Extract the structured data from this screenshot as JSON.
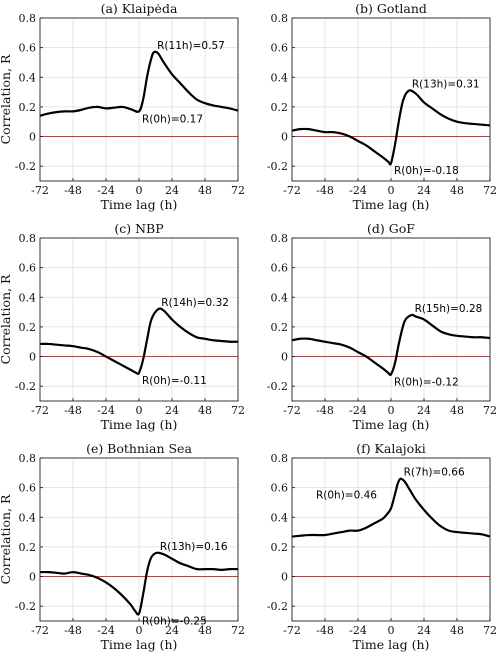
{
  "chart_data": [
    {
      "type": "line",
      "title": "(a) Klaipėda",
      "xlabel": "Time lag (h)",
      "ylabel": "Correlation, R",
      "xlim": [
        -72,
        72
      ],
      "ylim": [
        -0.3,
        0.8
      ],
      "xticks": [
        -72,
        -48,
        -24,
        0,
        24,
        48,
        72
      ],
      "yticks": [
        -0.2,
        0,
        0.2,
        0.4,
        0.6,
        0.8
      ],
      "xticklabels": [
        "-72",
        "-48",
        "-24",
        "0",
        "24",
        "48",
        "72"
      ],
      "yticklabels": [
        "-0.2",
        "0",
        "0.2",
        "0.4",
        "0.6",
        "0.8"
      ],
      "grid": true,
      "x": [
        -72,
        -66,
        -60,
        -54,
        -48,
        -42,
        -36,
        -30,
        -24,
        -18,
        -12,
        -6,
        0,
        3,
        6,
        9,
        11,
        14,
        18,
        24,
        30,
        36,
        42,
        48,
        54,
        60,
        66,
        72
      ],
      "values": [
        0.14,
        0.155,
        0.165,
        0.17,
        0.17,
        0.18,
        0.195,
        0.2,
        0.19,
        0.195,
        0.2,
        0.185,
        0.17,
        0.25,
        0.41,
        0.53,
        0.57,
        0.56,
        0.5,
        0.42,
        0.36,
        0.3,
        0.25,
        0.225,
        0.21,
        0.2,
        0.19,
        0.175
      ],
      "annotations": [
        {
          "text": "R(11h)=0.57",
          "x": 11,
          "y": 0.57,
          "anchor": "upper-right"
        },
        {
          "text": "R(0h)=0.17",
          "x": 0,
          "y": 0.17,
          "anchor": "lower-right"
        }
      ]
    },
    {
      "type": "line",
      "title": "(b) Gotland",
      "xlabel": "Time lag (h)",
      "ylabel": "",
      "xlim": [
        -72,
        72
      ],
      "ylim": [
        -0.3,
        0.8
      ],
      "xticks": [
        -72,
        -48,
        -24,
        0,
        24,
        48,
        72
      ],
      "yticks": [
        -0.2,
        0,
        0.2,
        0.4,
        0.6,
        0.8
      ],
      "xticklabels": [
        "-72",
        "-48",
        "-24",
        "0",
        "24",
        "48",
        "72"
      ],
      "yticklabels": [
        "-0.2",
        "0",
        "0.2",
        "0.4",
        "0.6",
        "0.8"
      ],
      "grid": true,
      "x": [
        -72,
        -66,
        -60,
        -54,
        -48,
        -42,
        -36,
        -30,
        -24,
        -18,
        -12,
        -6,
        -2,
        0,
        3,
        6,
        9,
        13,
        18,
        24,
        30,
        36,
        42,
        48,
        54,
        60,
        66,
        72
      ],
      "values": [
        0.04,
        0.05,
        0.05,
        0.04,
        0.03,
        0.03,
        0.02,
        0.0,
        -0.03,
        -0.06,
        -0.1,
        -0.14,
        -0.17,
        -0.18,
        -0.05,
        0.12,
        0.25,
        0.31,
        0.29,
        0.23,
        0.19,
        0.15,
        0.12,
        0.1,
        0.09,
        0.085,
        0.08,
        0.075
      ],
      "annotations": [
        {
          "text": "R(13h)=0.31",
          "x": 13,
          "y": 0.31,
          "anchor": "upper-right"
        },
        {
          "text": "R(0h)=-0.18",
          "x": 0,
          "y": -0.18,
          "anchor": "lower-right"
        }
      ]
    },
    {
      "type": "line",
      "title": "(c) NBP",
      "xlabel": "Time lag (h)",
      "ylabel": "Correlation, R",
      "xlim": [
        -72,
        72
      ],
      "ylim": [
        -0.3,
        0.8
      ],
      "xticks": [
        -72,
        -48,
        -24,
        0,
        24,
        48,
        72
      ],
      "yticks": [
        -0.2,
        0,
        0.2,
        0.4,
        0.6,
        0.8
      ],
      "xticklabels": [
        "-72",
        "-48",
        "-24",
        "0",
        "24",
        "48",
        "72"
      ],
      "yticklabels": [
        "-0.2",
        "0",
        "0.2",
        "0.4",
        "0.6",
        "0.8"
      ],
      "grid": true,
      "x": [
        -72,
        -66,
        -60,
        -54,
        -48,
        -42,
        -36,
        -30,
        -24,
        -18,
        -12,
        -6,
        -2,
        0,
        3,
        6,
        9,
        14,
        18,
        24,
        30,
        36,
        42,
        48,
        54,
        60,
        66,
        72
      ],
      "values": [
        0.085,
        0.085,
        0.08,
        0.075,
        0.07,
        0.06,
        0.05,
        0.03,
        0.0,
        -0.03,
        -0.06,
        -0.09,
        -0.11,
        -0.11,
        -0.02,
        0.12,
        0.25,
        0.32,
        0.31,
        0.25,
        0.2,
        0.16,
        0.13,
        0.12,
        0.11,
        0.105,
        0.1,
        0.1
      ],
      "annotations": [
        {
          "text": "R(14h)=0.32",
          "x": 14,
          "y": 0.32,
          "anchor": "upper-right"
        },
        {
          "text": "R(0h)=-0.11",
          "x": 0,
          "y": -0.11,
          "anchor": "lower-right"
        }
      ]
    },
    {
      "type": "line",
      "title": "(d) GoF",
      "xlabel": "Time lag (h)",
      "ylabel": "",
      "xlim": [
        -72,
        72
      ],
      "ylim": [
        -0.3,
        0.8
      ],
      "xticks": [
        -72,
        -48,
        -24,
        0,
        24,
        48,
        72
      ],
      "yticks": [
        -0.2,
        0,
        0.2,
        0.4,
        0.6,
        0.8
      ],
      "xticklabels": [
        "-72",
        "-48",
        "-24",
        "0",
        "24",
        "48",
        "72"
      ],
      "yticklabels": [
        "-0.2",
        "0",
        "0.2",
        "0.4",
        "0.6",
        "0.8"
      ],
      "grid": true,
      "x": [
        -72,
        -66,
        -60,
        -54,
        -48,
        -42,
        -36,
        -30,
        -24,
        -18,
        -12,
        -6,
        -2,
        0,
        3,
        6,
        10,
        15,
        18,
        24,
        30,
        36,
        42,
        48,
        54,
        60,
        66,
        72
      ],
      "values": [
        0.11,
        0.12,
        0.12,
        0.11,
        0.1,
        0.09,
        0.08,
        0.06,
        0.03,
        0.0,
        -0.04,
        -0.08,
        -0.11,
        -0.12,
        -0.04,
        0.1,
        0.24,
        0.28,
        0.27,
        0.25,
        0.21,
        0.17,
        0.15,
        0.14,
        0.135,
        0.13,
        0.13,
        0.125
      ],
      "annotations": [
        {
          "text": "R(15h)=0.28",
          "x": 15,
          "y": 0.28,
          "anchor": "upper-right"
        },
        {
          "text": "R(0h)=-0.12",
          "x": 0,
          "y": -0.12,
          "anchor": "lower-right"
        }
      ]
    },
    {
      "type": "line",
      "title": "(e) Bothnian Sea",
      "xlabel": "Time lag (h)",
      "ylabel": "Correlation, R",
      "xlim": [
        -72,
        72
      ],
      "ylim": [
        -0.3,
        0.8
      ],
      "xticks": [
        -72,
        -48,
        -24,
        0,
        24,
        48,
        72
      ],
      "yticks": [
        -0.2,
        0,
        0.2,
        0.4,
        0.6,
        0.8
      ],
      "xticklabels": [
        "-72",
        "-48",
        "-24",
        "0",
        "24",
        "48",
        "72"
      ],
      "yticklabels": [
        "-0.2",
        "0",
        "0.2",
        "0.4",
        "0.6",
        "0.8"
      ],
      "grid": true,
      "x": [
        -72,
        -66,
        -60,
        -54,
        -48,
        -42,
        -36,
        -30,
        -24,
        -18,
        -12,
        -6,
        -3,
        0,
        3,
        6,
        9,
        13,
        18,
        24,
        30,
        36,
        42,
        48,
        54,
        60,
        66,
        72
      ],
      "values": [
        0.03,
        0.03,
        0.025,
        0.02,
        0.03,
        0.02,
        0.01,
        -0.01,
        -0.04,
        -0.08,
        -0.13,
        -0.19,
        -0.23,
        -0.25,
        -0.12,
        0.04,
        0.13,
        0.16,
        0.15,
        0.12,
        0.09,
        0.07,
        0.05,
        0.05,
        0.05,
        0.045,
        0.05,
        0.05
      ],
      "annotations": [
        {
          "text": "R(13h)=0.16",
          "x": 13,
          "y": 0.16,
          "anchor": "upper-right"
        },
        {
          "text": "R(0h)=-0.25",
          "x": 0,
          "y": -0.25,
          "anchor": "lower-right"
        }
      ]
    },
    {
      "type": "line",
      "title": "(f) Kalajoki",
      "xlabel": "Time lag (h)",
      "ylabel": "",
      "xlim": [
        -72,
        72
      ],
      "ylim": [
        -0.3,
        0.8
      ],
      "xticks": [
        -72,
        -48,
        -24,
        0,
        24,
        48,
        72
      ],
      "yticks": [
        -0.2,
        0,
        0.2,
        0.4,
        0.6,
        0.8
      ],
      "xticklabels": [
        "-72",
        "-48",
        "-24",
        "0",
        "24",
        "48",
        "72"
      ],
      "yticklabels": [
        "-0.2",
        "0",
        "0.2",
        "0.4",
        "0.6",
        "0.8"
      ],
      "grid": true,
      "x": [
        -72,
        -66,
        -60,
        -54,
        -48,
        -42,
        -36,
        -30,
        -24,
        -18,
        -12,
        -6,
        -3,
        0,
        3,
        5,
        7,
        10,
        14,
        18,
        24,
        30,
        36,
        42,
        48,
        54,
        60,
        66,
        72
      ],
      "values": [
        0.27,
        0.275,
        0.28,
        0.28,
        0.28,
        0.29,
        0.3,
        0.31,
        0.31,
        0.33,
        0.36,
        0.39,
        0.42,
        0.46,
        0.56,
        0.63,
        0.66,
        0.64,
        0.58,
        0.52,
        0.45,
        0.39,
        0.34,
        0.31,
        0.3,
        0.295,
        0.29,
        0.285,
        0.27
      ],
      "annotations": [
        {
          "text": "R(7h)=0.66",
          "x": 7,
          "y": 0.66,
          "anchor": "upper-right"
        },
        {
          "text": "R(0h)=0.46",
          "x": 0,
          "y": 0.46,
          "anchor": "upper-left"
        }
      ]
    }
  ]
}
